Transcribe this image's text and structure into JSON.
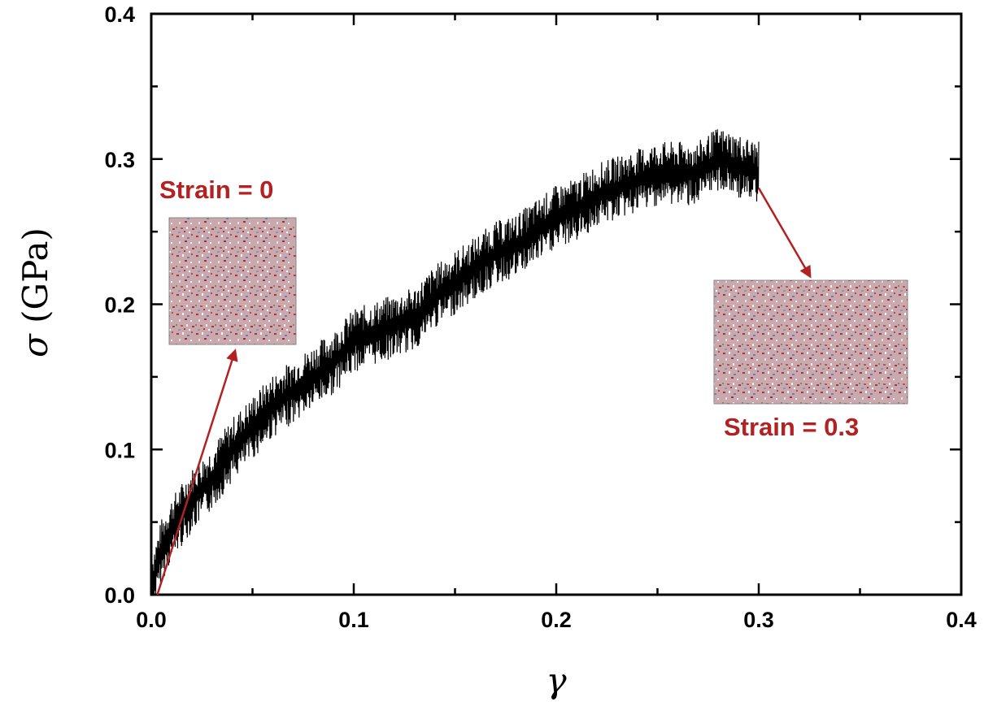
{
  "chart_data": {
    "type": "line",
    "xlabel": "γ",
    "ylabel_symbol": "σ",
    "ylabel_unit": " (GPa)",
    "xlim": [
      0.0,
      0.4
    ],
    "ylim": [
      0.0,
      0.4
    ],
    "x_ticks": [
      "0.0",
      "0.1",
      "0.2",
      "0.3",
      "0.4"
    ],
    "y_ticks": [
      "0.0",
      "0.1",
      "0.2",
      "0.3",
      "0.4"
    ],
    "grid": false,
    "series": [
      {
        "color": "#000000",
        "x": [
          0.0,
          0.005,
          0.01,
          0.02,
          0.03,
          0.04,
          0.05,
          0.06,
          0.07,
          0.08,
          0.09,
          0.1,
          0.11,
          0.12,
          0.13,
          0.14,
          0.15,
          0.16,
          0.17,
          0.18,
          0.19,
          0.2,
          0.21,
          0.22,
          0.23,
          0.24,
          0.25,
          0.26,
          0.27,
          0.28,
          0.29,
          0.3
        ],
        "y": [
          0.005,
          0.03,
          0.045,
          0.065,
          0.08,
          0.1,
          0.115,
          0.13,
          0.14,
          0.15,
          0.16,
          0.175,
          0.18,
          0.185,
          0.19,
          0.205,
          0.215,
          0.225,
          0.235,
          0.24,
          0.25,
          0.26,
          0.265,
          0.275,
          0.28,
          0.285,
          0.29,
          0.29,
          0.29,
          0.3,
          0.295,
          0.29
        ]
      }
    ],
    "annotations": [
      {
        "text": "Strain = 0",
        "color": "#b22222",
        "points_to": {
          "x": 0.003,
          "y": 0.0
        }
      },
      {
        "text": "Strain = 0.3",
        "color": "#b22222",
        "points_to": {
          "x": 0.3,
          "y": 0.28
        }
      }
    ]
  }
}
